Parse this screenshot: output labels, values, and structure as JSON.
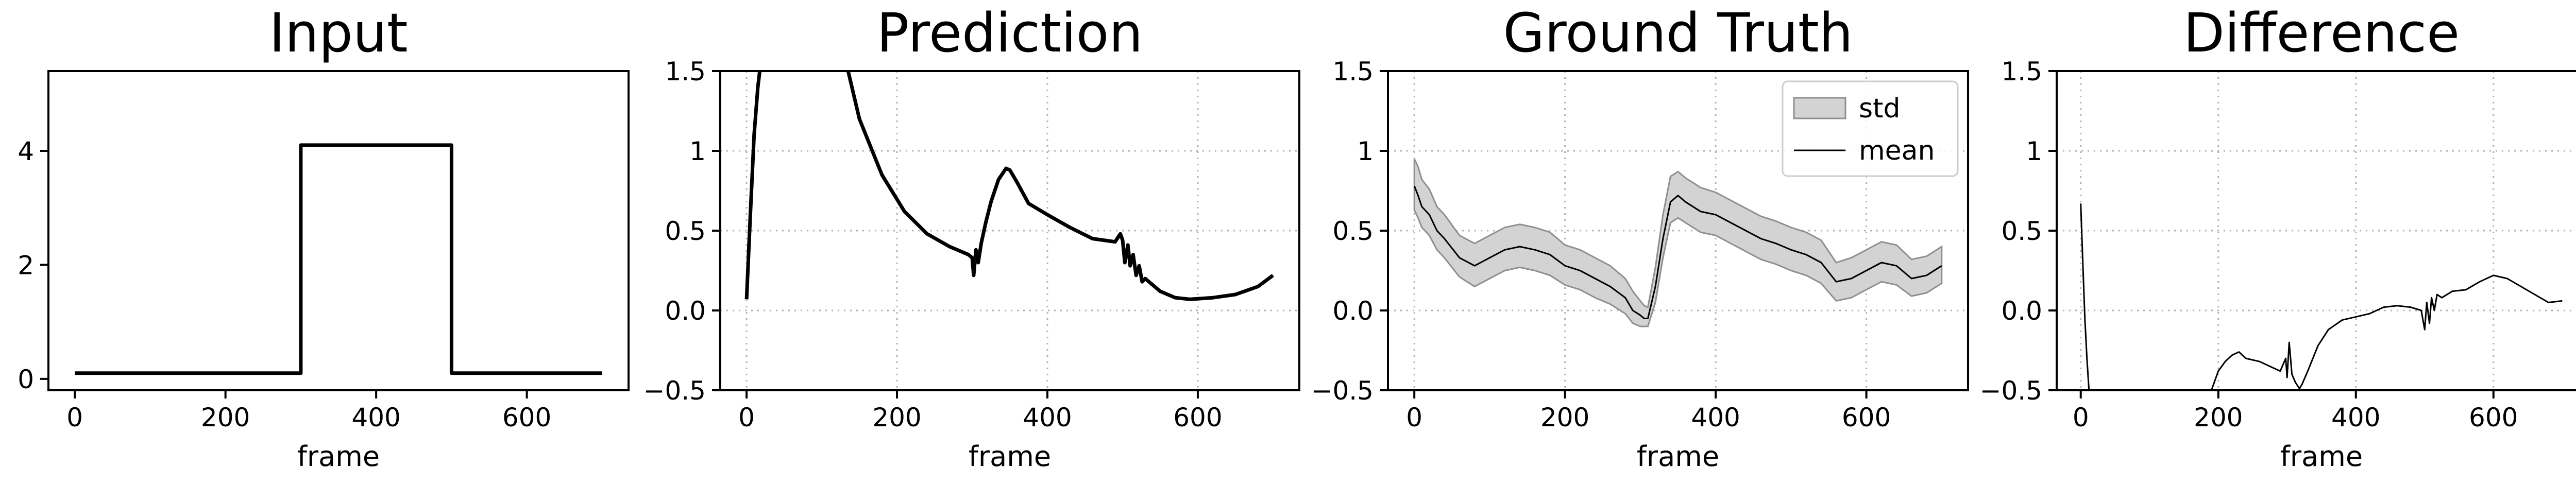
{
  "chart_data": [
    {
      "type": "line",
      "title": "Input",
      "xlabel": "frame",
      "ylabel": "",
      "xlim": [
        -35,
        735
      ],
      "ylim": [
        -0.2,
        5.4
      ],
      "xticks": [
        0,
        200,
        400,
        600
      ],
      "yticks": [
        0,
        2,
        4
      ],
      "grid": false,
      "series": [
        {
          "x": [
            0,
            300,
            300,
            500,
            500,
            700
          ],
          "y": [
            0.1,
            0.1,
            4.1,
            4.1,
            0.1,
            0.1
          ]
        }
      ]
    },
    {
      "type": "line",
      "title": "Prediction",
      "xlabel": "frame",
      "ylabel": "",
      "xlim": [
        -35,
        735
      ],
      "ylim": [
        -0.5,
        1.5
      ],
      "xticks": [
        0,
        200,
        400,
        600
      ],
      "yticks": [
        -0.5,
        0.0,
        0.5,
        1.0,
        1.5
      ],
      "grid": true,
      "series": [
        {
          "x": [
            0,
            5,
            10,
            15,
            20,
            130,
            150,
            180,
            210,
            240,
            270,
            295,
            300,
            302,
            305,
            308,
            312,
            318,
            325,
            335,
            345,
            350,
            360,
            375,
            400,
            430,
            460,
            490,
            497,
            500,
            503,
            507,
            510,
            514,
            518,
            522,
            526,
            530,
            550,
            570,
            590,
            620,
            650,
            680,
            700
          ],
          "y": [
            0.07,
            0.6,
            1.1,
            1.4,
            1.6,
            1.6,
            1.2,
            0.85,
            0.62,
            0.48,
            0.4,
            0.35,
            0.33,
            0.22,
            0.38,
            0.3,
            0.42,
            0.55,
            0.68,
            0.82,
            0.89,
            0.88,
            0.8,
            0.67,
            0.6,
            0.52,
            0.45,
            0.43,
            0.48,
            0.44,
            0.3,
            0.41,
            0.28,
            0.35,
            0.22,
            0.28,
            0.18,
            0.2,
            0.12,
            0.08,
            0.07,
            0.08,
            0.1,
            0.15,
            0.22
          ]
        }
      ]
    },
    {
      "type": "area",
      "title": "Ground Truth",
      "xlabel": "frame",
      "ylabel": "",
      "xlim": [
        -35,
        735
      ],
      "ylim": [
        -0.5,
        1.5
      ],
      "xticks": [
        0,
        200,
        400,
        600
      ],
      "yticks": [
        -0.5,
        0.0,
        0.5,
        1.0,
        1.5
      ],
      "grid": true,
      "legend": "top-right",
      "series": [
        {
          "name": "mean",
          "x": [
            0,
            5,
            10,
            20,
            30,
            40,
            60,
            80,
            100,
            120,
            140,
            160,
            180,
            200,
            220,
            240,
            260,
            280,
            290,
            300,
            305,
            310,
            320,
            330,
            340,
            350,
            360,
            380,
            400,
            420,
            440,
            460,
            480,
            500,
            520,
            540,
            560,
            580,
            600,
            620,
            640,
            660,
            680,
            700
          ],
          "y": [
            0.78,
            0.72,
            0.65,
            0.6,
            0.5,
            0.45,
            0.33,
            0.28,
            0.33,
            0.38,
            0.4,
            0.38,
            0.35,
            0.28,
            0.25,
            0.2,
            0.15,
            0.08,
            0.0,
            -0.03,
            -0.05,
            -0.05,
            0.15,
            0.45,
            0.68,
            0.72,
            0.68,
            0.62,
            0.6,
            0.55,
            0.5,
            0.45,
            0.42,
            0.38,
            0.35,
            0.3,
            0.18,
            0.2,
            0.25,
            0.3,
            0.28,
            0.2,
            0.22,
            0.28
          ]
        },
        {
          "name": "std",
          "x": [
            0,
            5,
            10,
            20,
            30,
            40,
            60,
            80,
            100,
            120,
            140,
            160,
            180,
            200,
            220,
            240,
            260,
            280,
            290,
            300,
            305,
            310,
            320,
            330,
            340,
            350,
            360,
            380,
            400,
            420,
            440,
            460,
            480,
            500,
            520,
            540,
            560,
            580,
            600,
            620,
            640,
            660,
            680,
            700
          ],
          "lower": [
            0.63,
            0.58,
            0.52,
            0.47,
            0.38,
            0.33,
            0.21,
            0.15,
            0.2,
            0.25,
            0.27,
            0.25,
            0.22,
            0.16,
            0.13,
            0.08,
            0.04,
            -0.02,
            -0.08,
            -0.1,
            -0.1,
            -0.1,
            0.05,
            0.33,
            0.55,
            0.58,
            0.55,
            0.49,
            0.47,
            0.42,
            0.37,
            0.32,
            0.29,
            0.25,
            0.22,
            0.17,
            0.06,
            0.08,
            0.13,
            0.18,
            0.16,
            0.09,
            0.11,
            0.17
          ],
          "upper": [
            0.95,
            0.9,
            0.82,
            0.76,
            0.65,
            0.6,
            0.47,
            0.42,
            0.47,
            0.52,
            0.54,
            0.52,
            0.49,
            0.41,
            0.38,
            0.33,
            0.28,
            0.2,
            0.12,
            0.06,
            0.03,
            0.02,
            0.27,
            0.6,
            0.84,
            0.87,
            0.83,
            0.77,
            0.74,
            0.69,
            0.64,
            0.59,
            0.56,
            0.52,
            0.49,
            0.44,
            0.3,
            0.33,
            0.38,
            0.43,
            0.41,
            0.32,
            0.34,
            0.4
          ]
        }
      ]
    },
    {
      "type": "line",
      "title": "Difference",
      "xlabel": "frame",
      "ylabel": "",
      "xlim": [
        -35,
        735
      ],
      "ylim": [
        -0.5,
        1.5
      ],
      "xticks": [
        0,
        200,
        400,
        600
      ],
      "yticks": [
        -0.5,
        0.0,
        0.5,
        1.0,
        1.5
      ],
      "grid": true,
      "series": [
        {
          "x": [
            0,
            3,
            6,
            9,
            12,
            190,
            200,
            210,
            220,
            230,
            240,
            260,
            280,
            290,
            298,
            300,
            303,
            307,
            312,
            318,
            322,
            330,
            345,
            360,
            380,
            400,
            420,
            440,
            460,
            480,
            495,
            500,
            503,
            507,
            510,
            514,
            518,
            525,
            540,
            560,
            580,
            600,
            620,
            640,
            660,
            680,
            700
          ],
          "y": [
            0.67,
            0.3,
            -0.05,
            -0.3,
            -0.5,
            -0.5,
            -0.38,
            -0.32,
            -0.28,
            -0.26,
            -0.3,
            -0.32,
            -0.36,
            -0.38,
            -0.3,
            -0.42,
            -0.2,
            -0.4,
            -0.45,
            -0.49,
            -0.46,
            -0.38,
            -0.22,
            -0.12,
            -0.06,
            -0.04,
            -0.02,
            0.02,
            0.03,
            0.02,
            0.0,
            -0.12,
            0.05,
            -0.08,
            0.08,
            0.0,
            0.1,
            0.08,
            0.12,
            0.13,
            0.18,
            0.22,
            0.2,
            0.15,
            0.1,
            0.05,
            0.06
          ]
        }
      ]
    }
  ]
}
